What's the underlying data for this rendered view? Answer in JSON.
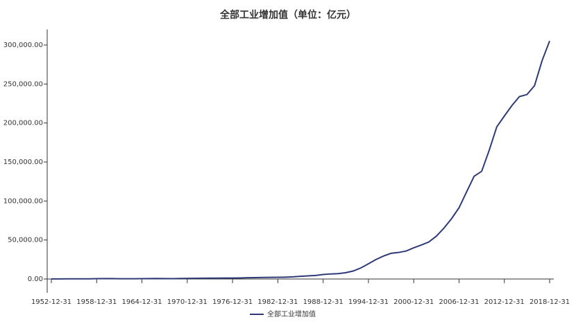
{
  "chart_data": {
    "type": "line",
    "title": "全部工业增加值（单位：亿元）",
    "categories": [
      "1952-12-31",
      null,
      null,
      null,
      null,
      null,
      "1958-12-31",
      null,
      null,
      null,
      null,
      null,
      "1964-12-31",
      null,
      null,
      null,
      null,
      null,
      "1970-12-31",
      null,
      null,
      null,
      null,
      null,
      "1976-12-31",
      null,
      null,
      null,
      null,
      null,
      "1982-12-31",
      null,
      null,
      null,
      null,
      null,
      "1988-12-31",
      null,
      null,
      null,
      null,
      null,
      "1994-12-31",
      null,
      null,
      null,
      null,
      null,
      "2000-12-31",
      null,
      null,
      null,
      null,
      null,
      "2006-12-31",
      null,
      null,
      null,
      null,
      null,
      "2012-12-31",
      null,
      null,
      null,
      null,
      null,
      "2018-12-31"
    ],
    "series": [
      {
        "name": "全部工业增加值",
        "color": "#2e3a78",
        "values": [
          120,
          163,
          184,
          191,
          225,
          271,
          415,
          538,
          568,
          357,
          325,
          367,
          455,
          546,
          649,
          545,
          496,
          663,
          828,
          924,
          990,
          1075,
          1085,
          1244,
          1205,
          1372,
          1622,
          1787,
          2015,
          2076,
          2163,
          2376,
          2789,
          3448,
          3967,
          4586,
          5777,
          6484,
          6858,
          8087,
          10284,
          14188,
          19481,
          24951,
          29448,
          32921,
          34018,
          35861,
          40034,
          43581,
          47431,
          54946,
          65210,
          77231,
          91311,
          111694,
          131728,
          138096,
          165126,
          195143,
          208906,
          222338,
          233856,
          236506,
          247878,
          279997,
          305160
        ]
      }
    ],
    "ylim": [
      -10000,
      320000
    ],
    "yticks": [
      {
        "value": 0,
        "label": "0.00"
      },
      {
        "value": 50000,
        "label": "50,000.00"
      },
      {
        "value": 100000,
        "label": "100,000.00"
      },
      {
        "value": 150000,
        "label": "150,000.00"
      },
      {
        "value": 200000,
        "label": "200,000.00"
      },
      {
        "value": 250000,
        "label": "250,000.00"
      },
      {
        "value": 300000,
        "label": "300,000.00"
      }
    ]
  }
}
